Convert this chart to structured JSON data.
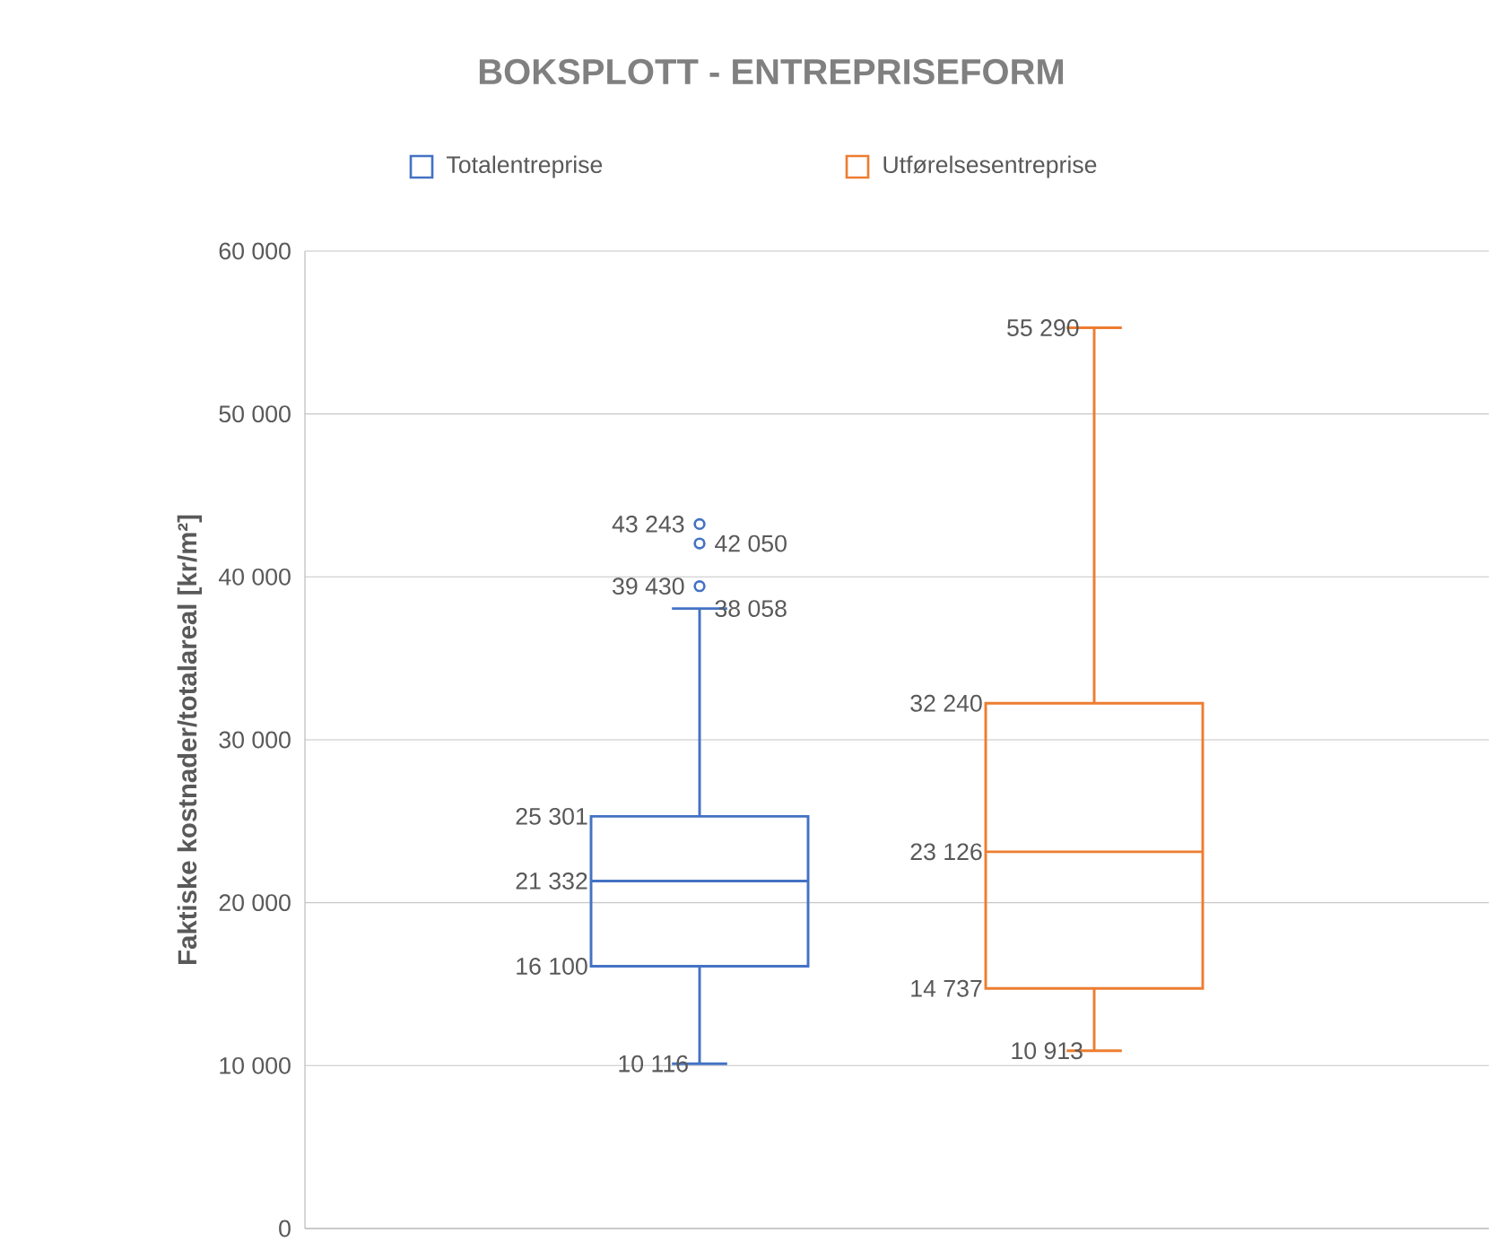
{
  "chart_data": {
    "type": "box",
    "title": "BOKSPLOTT - ENTREPRISEFORM",
    "ylabel": "Faktiske kostnader/totalareal [kr/m²]",
    "categories": [
      null,
      null
    ],
    "series": [
      {
        "name": "Totalentreprise",
        "color": "#4472c4",
        "boxes": [
          {
            "low": 10116,
            "q1": 16100,
            "median": 21332,
            "q3": 25301,
            "high": 38058,
            "outliers": [
              39430,
              42050,
              43243
            ]
          },
          null
        ]
      },
      {
        "name": "Utførelsesentreprise",
        "color": "#ed7d31",
        "boxes": [
          null,
          {
            "low": 10913,
            "q1": 14737,
            "median": 23126,
            "q3": 32240,
            "high": 55290
          }
        ]
      }
    ],
    "ylim": [
      0,
      60000
    ],
    "yticks": [
      {
        "value": 0,
        "label": "0"
      },
      {
        "value": 10000,
        "label": "10 000"
      },
      {
        "value": 20000,
        "label": "20 000"
      },
      {
        "value": 30000,
        "label": "30 000"
      },
      {
        "value": 40000,
        "label": "40 000"
      },
      {
        "value": 50000,
        "label": "50 000"
      },
      {
        "value": 60000,
        "label": "60 000"
      }
    ],
    "annotations": [
      "10 116",
      "16 100",
      "21 332",
      "25 301",
      "38 058",
      "39 430",
      "42 050",
      "43 243",
      "10 913",
      "14 737",
      "23 126",
      "32 240",
      "55 290"
    ],
    "grid": "y",
    "legend": "top",
    "marker": "circle"
  }
}
